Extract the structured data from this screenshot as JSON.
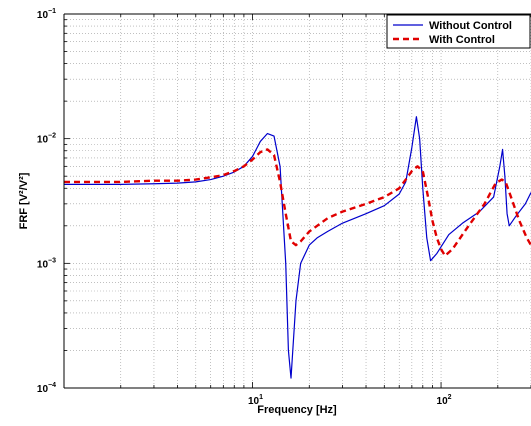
{
  "chart_data": {
    "type": "line",
    "xlabel": "Frequency [Hz]",
    "ylabel": "FRF [V²/V²]",
    "xscale": "log",
    "yscale": "log",
    "xlim": [
      1,
      300
    ],
    "ylim": [
      0.0001,
      0.1
    ],
    "xtick_labels": [
      {
        "value": 10,
        "base": "10",
        "exp": "1"
      },
      {
        "value": 100,
        "base": "10",
        "exp": "2"
      }
    ],
    "ytick_labels": [
      {
        "value": 0.1,
        "base": "10",
        "exp": "−1"
      },
      {
        "value": 0.01,
        "base": "10",
        "exp": "−2"
      },
      {
        "value": 0.001,
        "base": "10",
        "exp": "−3"
      },
      {
        "value": 0.0001,
        "base": "10",
        "exp": "−4"
      }
    ],
    "grid": true,
    "legend_position": "top-right",
    "series": [
      {
        "name": "Without Control",
        "color": "#0000cc",
        "style": "solid",
        "points": [
          [
            1,
            0.0043
          ],
          [
            2,
            0.0043
          ],
          [
            3,
            0.00435
          ],
          [
            4,
            0.0044
          ],
          [
            5,
            0.0045
          ],
          [
            6,
            0.0047
          ],
          [
            7,
            0.005
          ],
          [
            8,
            0.0054
          ],
          [
            9,
            0.006
          ],
          [
            10,
            0.0072
          ],
          [
            11,
            0.0095
          ],
          [
            12,
            0.011
          ],
          [
            13,
            0.0105
          ],
          [
            14,
            0.006
          ],
          [
            15,
            0.001
          ],
          [
            15.5,
            0.0002
          ],
          [
            16,
            0.00012
          ],
          [
            17,
            0.0005
          ],
          [
            18,
            0.001
          ],
          [
            20,
            0.0014
          ],
          [
            22,
            0.0016
          ],
          [
            25,
            0.0018
          ],
          [
            30,
            0.0021
          ],
          [
            40,
            0.0025
          ],
          [
            50,
            0.0029
          ],
          [
            60,
            0.0036
          ],
          [
            65,
            0.0045
          ],
          [
            70,
            0.0085
          ],
          [
            74,
            0.015
          ],
          [
            77,
            0.01
          ],
          [
            80,
            0.004
          ],
          [
            84,
            0.0016
          ],
          [
            88,
            0.00105
          ],
          [
            95,
            0.0012
          ],
          [
            110,
            0.0017
          ],
          [
            130,
            0.0021
          ],
          [
            160,
            0.0026
          ],
          [
            190,
            0.0034
          ],
          [
            205,
            0.006
          ],
          [
            212,
            0.0082
          ],
          [
            218,
            0.005
          ],
          [
            224,
            0.0025
          ],
          [
            230,
            0.002
          ],
          [
            250,
            0.0024
          ],
          [
            280,
            0.003
          ],
          [
            300,
            0.0037
          ]
        ]
      },
      {
        "name": "With Control",
        "color": "#e00000",
        "style": "dashed",
        "points": [
          [
            1,
            0.0045
          ],
          [
            2,
            0.0045
          ],
          [
            3,
            0.0046
          ],
          [
            4,
            0.0046
          ],
          [
            5,
            0.0047
          ],
          [
            6,
            0.0049
          ],
          [
            7,
            0.0051
          ],
          [
            8,
            0.0055
          ],
          [
            9,
            0.006
          ],
          [
            10,
            0.0068
          ],
          [
            11,
            0.0078
          ],
          [
            12,
            0.0082
          ],
          [
            13,
            0.0074
          ],
          [
            14,
            0.0045
          ],
          [
            15,
            0.0025
          ],
          [
            16,
            0.0015
          ],
          [
            17,
            0.0014
          ],
          [
            18,
            0.0015
          ],
          [
            20,
            0.0018
          ],
          [
            25,
            0.0023
          ],
          [
            30,
            0.0026
          ],
          [
            40,
            0.003
          ],
          [
            50,
            0.0034
          ],
          [
            60,
            0.004
          ],
          [
            65,
            0.0047
          ],
          [
            70,
            0.0055
          ],
          [
            75,
            0.006
          ],
          [
            80,
            0.0055
          ],
          [
            85,
            0.0035
          ],
          [
            90,
            0.0022
          ],
          [
            95,
            0.0016
          ],
          [
            100,
            0.0013
          ],
          [
            105,
            0.00115
          ],
          [
            115,
            0.0013
          ],
          [
            140,
            0.002
          ],
          [
            170,
            0.003
          ],
          [
            195,
            0.0044
          ],
          [
            210,
            0.0047
          ],
          [
            220,
            0.0045
          ],
          [
            235,
            0.0034
          ],
          [
            260,
            0.0022
          ],
          [
            285,
            0.0016
          ],
          [
            300,
            0.0014
          ]
        ]
      }
    ]
  }
}
